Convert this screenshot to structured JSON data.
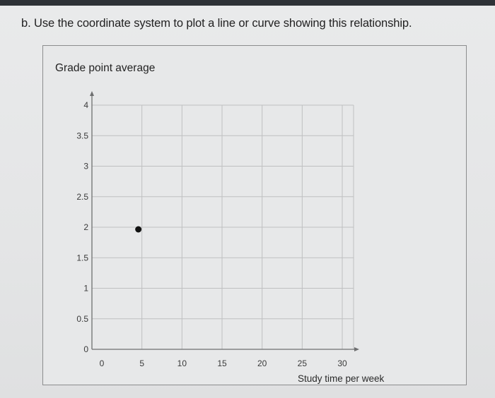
{
  "question": {
    "text": "b.  Use the coordinate system to plot a line or curve showing this relationship."
  },
  "chart_data": {
    "type": "scatter",
    "title": "Grade point average",
    "xlabel": "Study time per week",
    "ylabel": "",
    "xlim": [
      0,
      30
    ],
    "ylim": [
      0,
      4
    ],
    "x_ticks": [
      0,
      5,
      10,
      15,
      20,
      25,
      30
    ],
    "x_tick_labels": [
      "0",
      "5",
      "10",
      "15",
      "20",
      "25",
      "30"
    ],
    "y_ticks": [
      0,
      0.5,
      1,
      1.5,
      2,
      2.5,
      3,
      3.5,
      4
    ],
    "y_tick_labels": [
      "0",
      "0.5",
      "1",
      "1.5",
      "2",
      "2.5",
      "3",
      "3.5",
      "4"
    ],
    "grid": true,
    "points": [
      {
        "x": 5,
        "y": 2
      }
    ],
    "colors": {
      "grid": "#bfc0c1",
      "axis": "#6e6f70",
      "point": "#111111"
    }
  }
}
